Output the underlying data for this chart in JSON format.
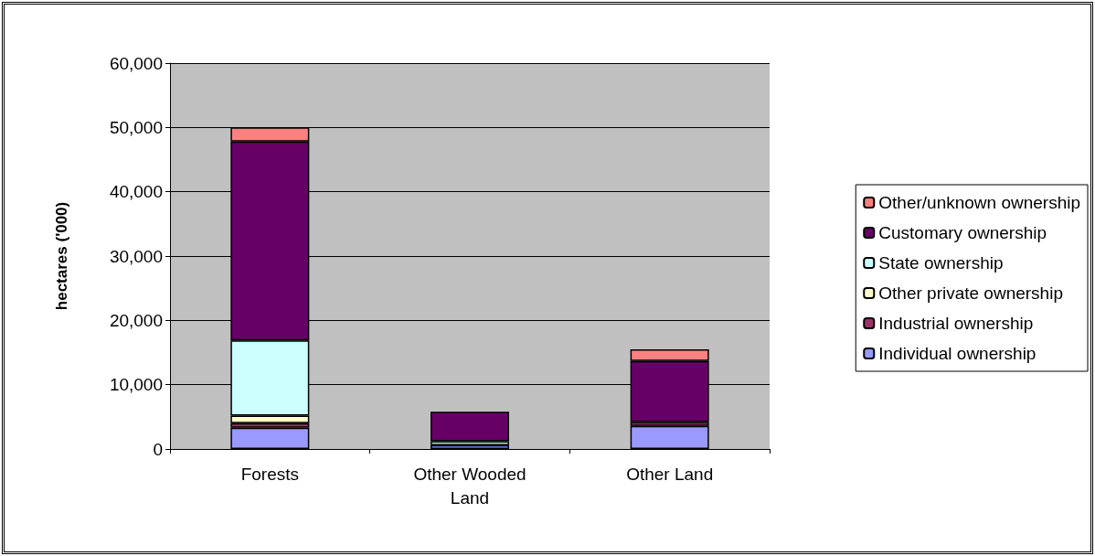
{
  "chart_data": {
    "type": "bar",
    "stacked": true,
    "ylabel": "hectares ('000)",
    "categories": [
      "Forests",
      "Other Wooded Land",
      "Other Land"
    ],
    "ylim": [
      0,
      60000
    ],
    "yticks": [
      {
        "value": 0,
        "label": "0"
      },
      {
        "value": 10000,
        "label": "10,000"
      },
      {
        "value": 20000,
        "label": "20,000"
      },
      {
        "value": 30000,
        "label": "30,000"
      },
      {
        "value": 40000,
        "label": "40,000"
      },
      {
        "value": 50000,
        "label": "50,000"
      },
      {
        "value": 60000,
        "label": "60,000"
      }
    ],
    "grid": "y",
    "legend": "right",
    "series": [
      {
        "name": "Individual ownership",
        "color": "#9999ff",
        "values": [
          3300,
          600,
          3600
        ]
      },
      {
        "name": "Industrial ownership",
        "color": "#993366",
        "values": [
          700,
          null,
          600
        ]
      },
      {
        "name": "Other private ownership",
        "color": "#ffffcc",
        "values": [
          1200,
          null,
          null
        ]
      },
      {
        "name": "State ownership",
        "color": "#ccffff",
        "values": [
          11700,
          600,
          null
        ]
      },
      {
        "name": "Customary ownership",
        "color": "#660066",
        "values": [
          30900,
          4600,
          9500
        ]
      },
      {
        "name": "Other/unknown ownership",
        "color": "#ff8080",
        "values": [
          2200,
          null,
          1800
        ]
      }
    ]
  }
}
